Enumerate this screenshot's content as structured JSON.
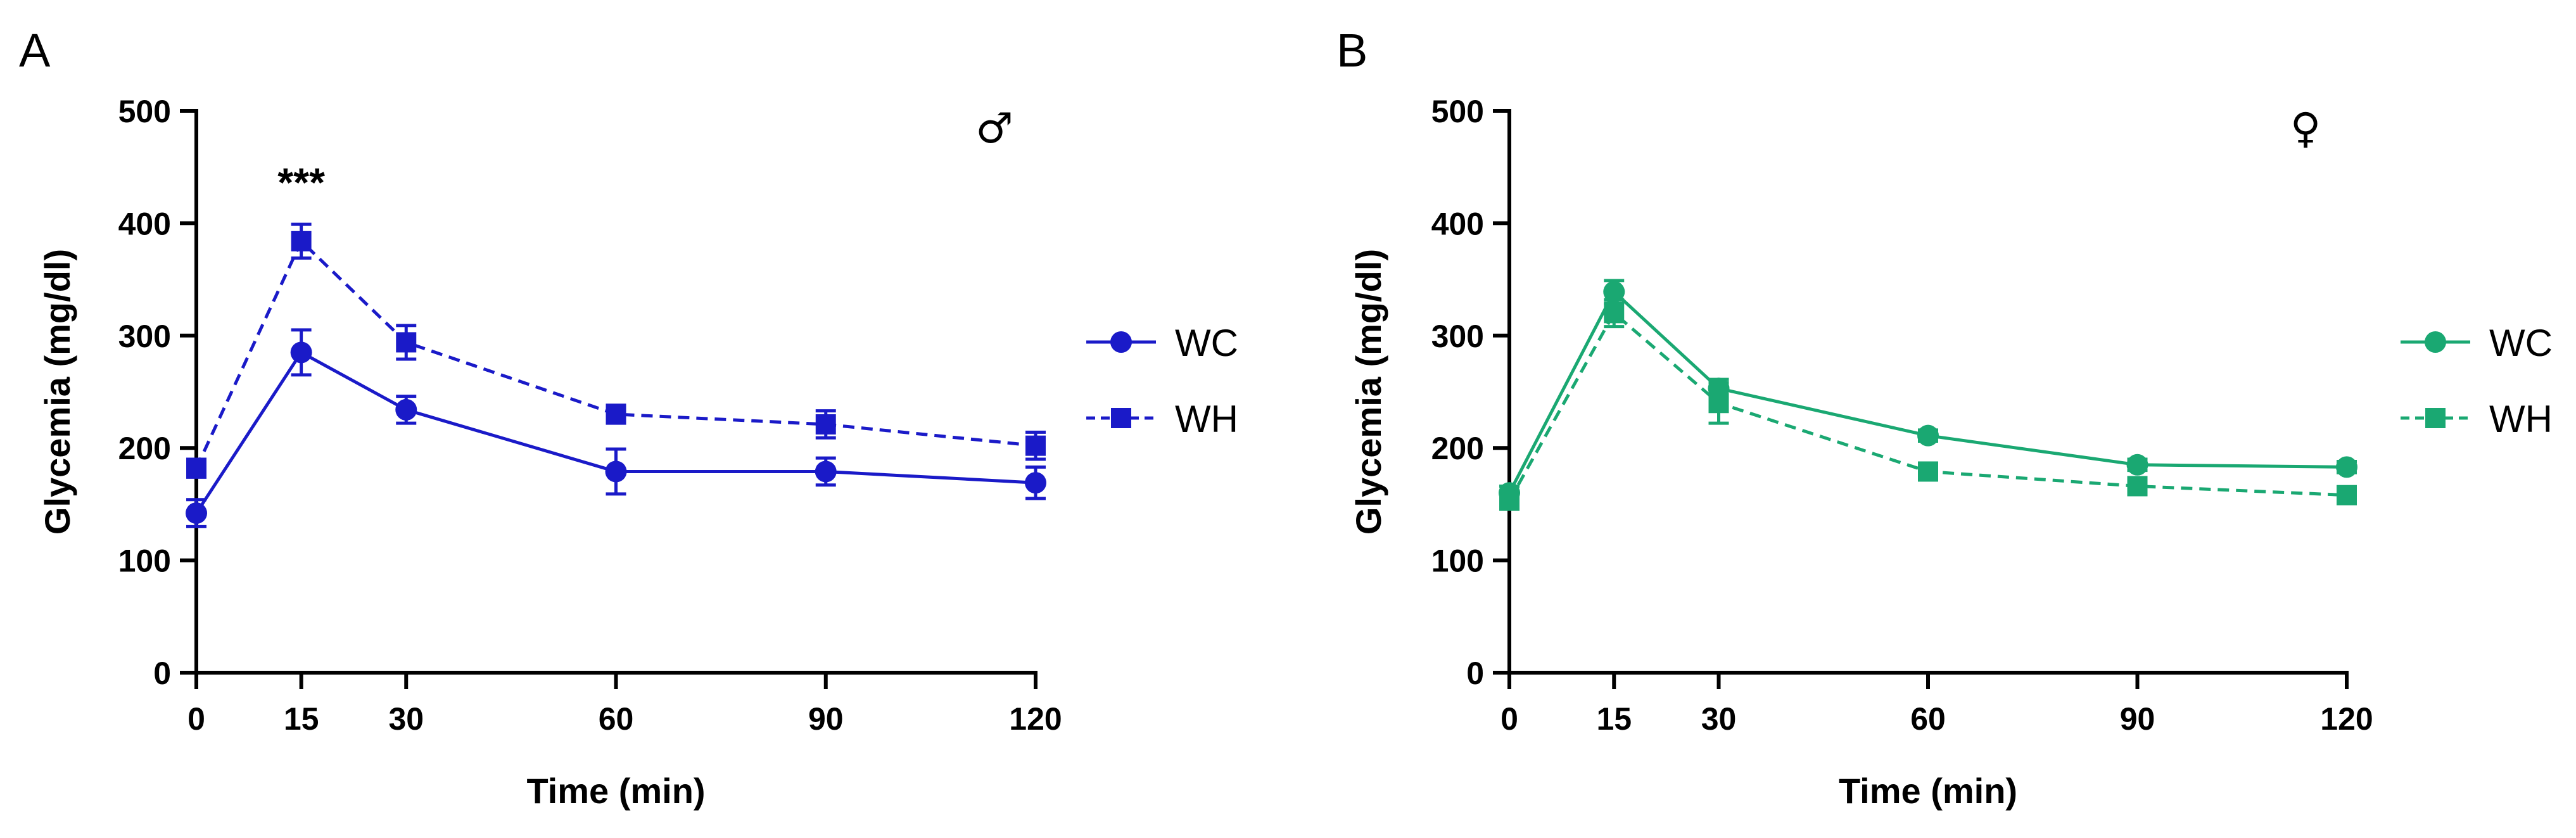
{
  "chart_data": [
    {
      "type": "line",
      "panel_label": "A",
      "sex_symbol": "♂",
      "annotation": {
        "text": "***",
        "x": 15
      },
      "x": [
        0,
        15,
        30,
        60,
        90,
        120
      ],
      "x_tick_labels": [
        "0",
        "15",
        "30",
        "60",
        "90",
        "120"
      ],
      "y_ticks": [
        0,
        100,
        200,
        300,
        400,
        500
      ],
      "y_tick_labels": [
        "0",
        "100",
        "200",
        "300",
        "400",
        "500"
      ],
      "xlabel": "Time (min)",
      "ylabel": "Glycemia (mg/dl)",
      "xlim": [
        0,
        120
      ],
      "ylim": [
        0,
        500
      ],
      "legend_position": "right",
      "color": "#1a1ac8",
      "series": [
        {
          "name": "WC",
          "marker": "circle",
          "dash": "solid",
          "values": [
            142,
            285,
            234,
            179,
            179,
            169
          ],
          "errors": [
            12,
            20,
            12,
            20,
            12,
            14
          ]
        },
        {
          "name": "WH",
          "marker": "square",
          "dash": "dashed",
          "values": [
            182,
            384,
            294,
            230,
            221,
            202
          ],
          "errors": [
            8,
            15,
            15,
            8,
            12,
            12
          ]
        }
      ]
    },
    {
      "type": "line",
      "panel_label": "B",
      "sex_symbol": "♀",
      "annotation": null,
      "x": [
        0,
        15,
        30,
        60,
        90,
        120
      ],
      "x_tick_labels": [
        "0",
        "15",
        "30",
        "60",
        "90",
        "120"
      ],
      "y_ticks": [
        0,
        100,
        200,
        300,
        400,
        500
      ],
      "y_tick_labels": [
        "0",
        "100",
        "200",
        "300",
        "400",
        "500"
      ],
      "xlabel": "Time (min)",
      "ylabel": "Glycemia (mg/dl)",
      "xlim": [
        0,
        120
      ],
      "ylim": [
        0,
        500
      ],
      "legend_position": "right",
      "color": "#1aa872",
      "series": [
        {
          "name": "WC",
          "marker": "circle",
          "dash": "solid",
          "values": [
            160,
            339,
            253,
            211,
            185,
            183
          ],
          "errors": [
            6,
            10,
            8,
            5,
            5,
            5
          ]
        },
        {
          "name": "WH",
          "marker": "square",
          "dash": "dashed",
          "values": [
            153,
            320,
            240,
            179,
            166,
            158
          ],
          "errors": [
            6,
            12,
            18,
            5,
            5,
            5
          ]
        }
      ]
    }
  ]
}
